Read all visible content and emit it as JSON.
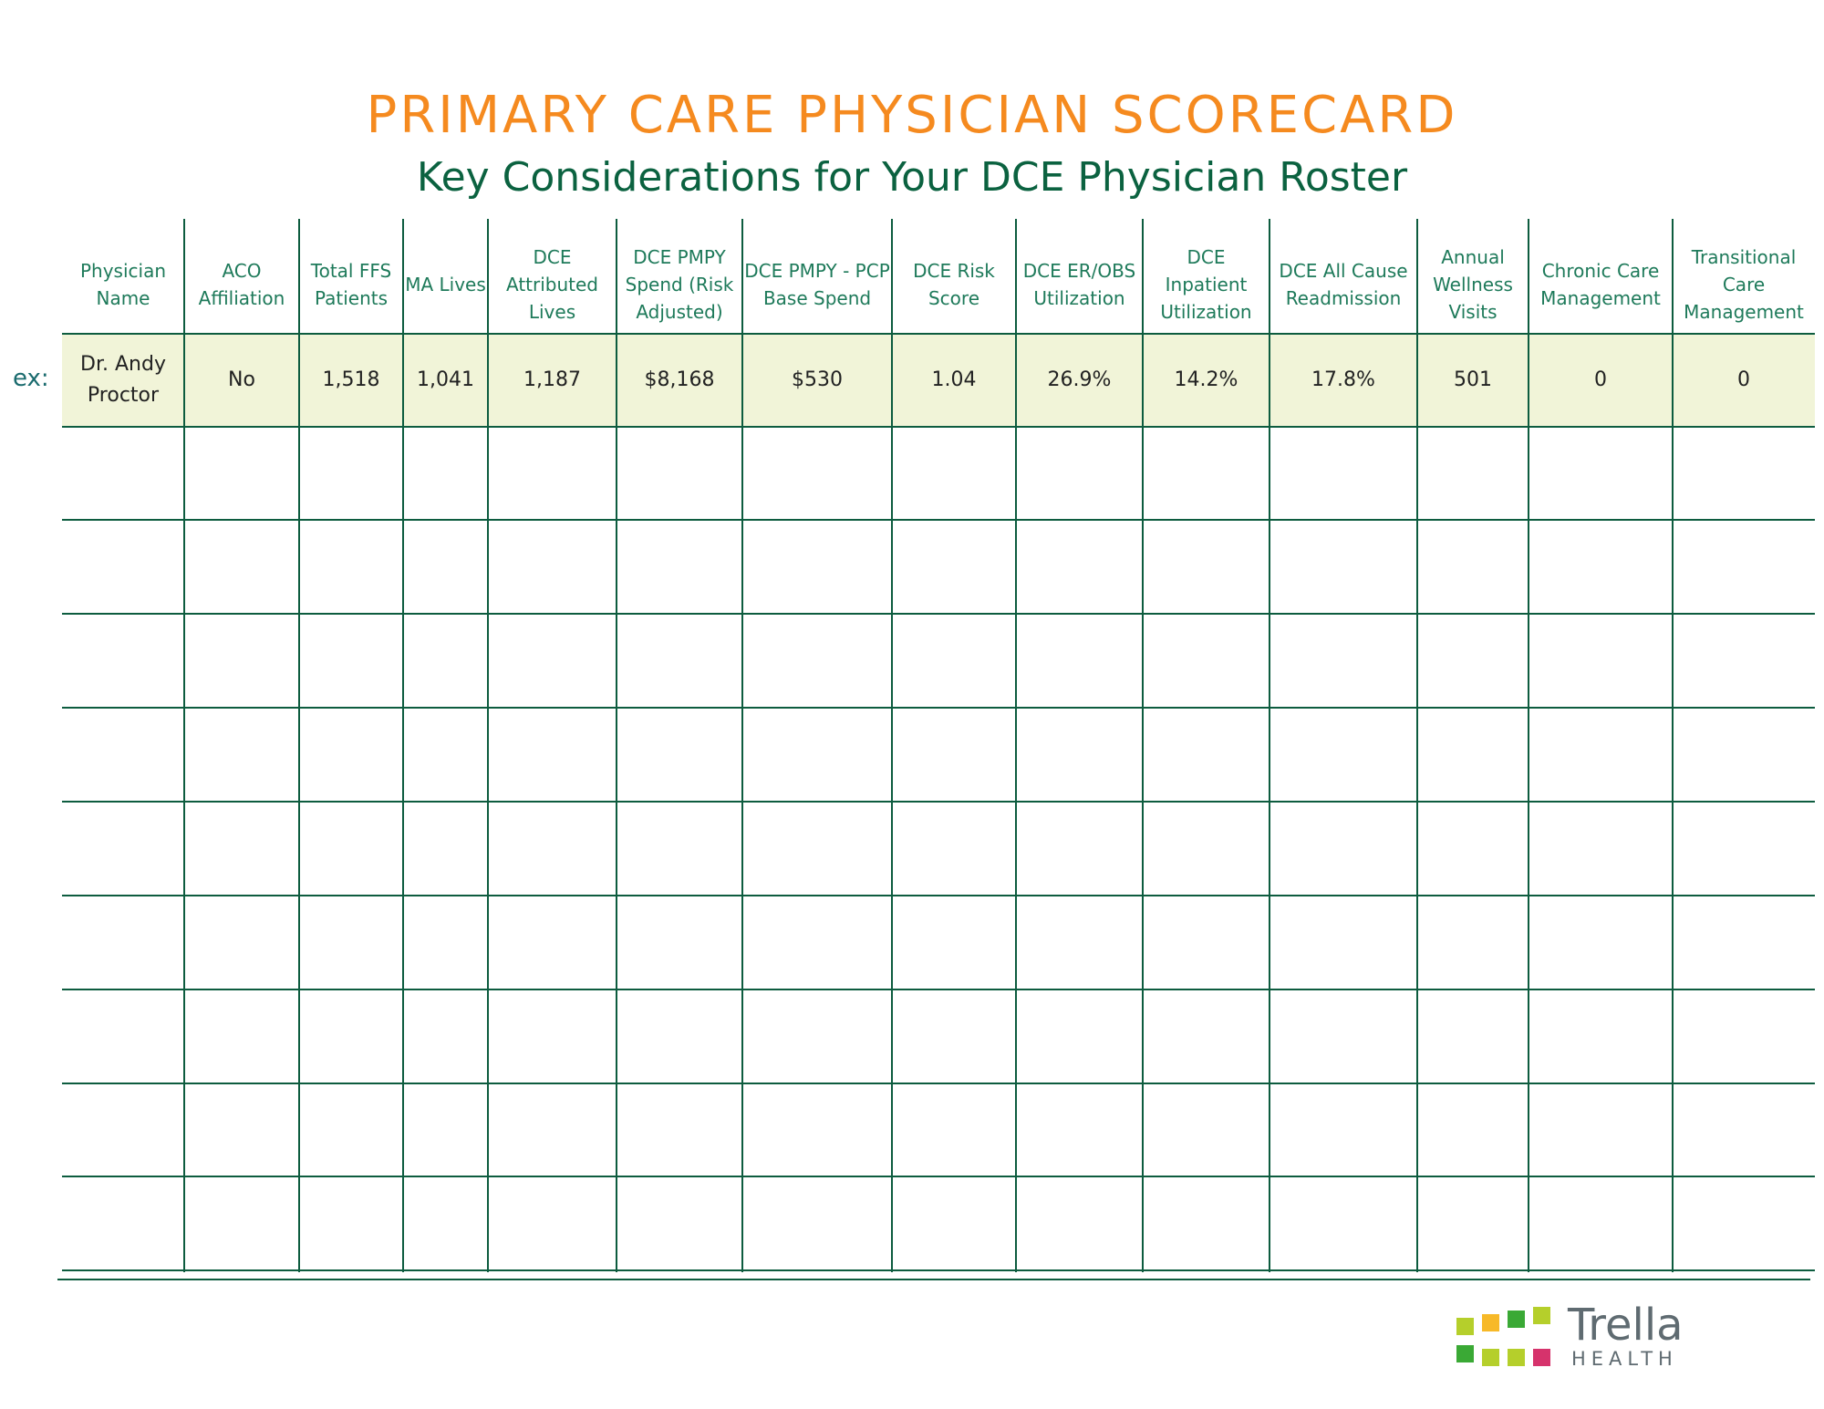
{
  "header": {
    "title": "PRIMARY CARE PHYSICIAN SCORECARD",
    "subtitle": "Key Considerations for Your DCE Physician Roster"
  },
  "table": {
    "columns": [
      "Physician Name",
      "ACO Affiliation",
      "Total FFS Patients",
      "MA Lives",
      "DCE Attributed Lives",
      "DCE PMPY Spend (Risk Adjusted)",
      "DCE PMPY - PCP Base Spend",
      "DCE Risk Score",
      "DCE ER/OBS Utilization",
      "DCE Inpatient Utilization",
      "DCE All Cause Readmission",
      "Annual Wellness Visits",
      "Chronic Care Management",
      "Transitional Care Management"
    ],
    "example_label": "ex:",
    "example_row": [
      "Dr. Andy Proctor",
      "No",
      "1,518",
      "1,041",
      "1,187",
      "$8,168",
      "$530",
      "1.04",
      "26.9%",
      "14.2%",
      "17.8%",
      "501",
      "0",
      "0"
    ],
    "empty_rows": 9
  },
  "logo": {
    "name": "Trella",
    "tagline": "HEALTH",
    "colors": [
      "#b5cf2b",
      "#f7b928",
      "#3aa935",
      "#b5cf2b",
      "#3aa935",
      "#b5cf2b",
      "#b5cf2b",
      "#d6336c"
    ]
  },
  "colors": {
    "title": "#f58a1f",
    "subtitle": "#0b6240",
    "header_text": "#1e7a5a",
    "grid": "#0d5c3f",
    "example_fill": "#f1f4d8"
  }
}
